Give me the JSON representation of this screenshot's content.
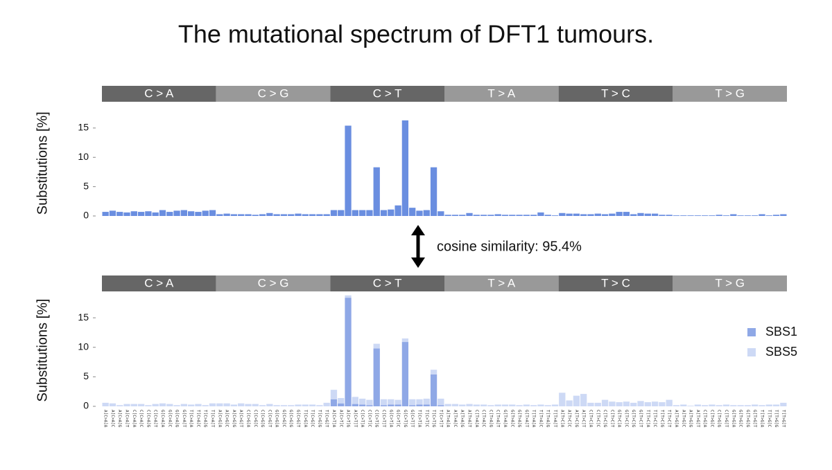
{
  "title": "The mutational spectrum of DFT1 tumours.",
  "annotation": "cosine similarity: 95.4%",
  "chart_data": [
    {
      "type": "bar",
      "ylabel": "Substitutions [%]",
      "color": "#6a8ee0",
      "groups": [
        {
          "name": "C > A",
          "color": "#666666"
        },
        {
          "name": "C > G",
          "color": "#999999"
        },
        {
          "name": "C > T",
          "color": "#666666"
        },
        {
          "name": "T > A",
          "color": "#999999"
        },
        {
          "name": "T > C",
          "color": "#666666"
        },
        {
          "name": "T > G",
          "color": "#999999"
        }
      ],
      "values": [
        0.7,
        0.9,
        0.7,
        0.6,
        0.8,
        0.7,
        0.8,
        0.6,
        1.0,
        0.7,
        0.9,
        1.0,
        0.8,
        0.7,
        0.9,
        1.0,
        0.3,
        0.4,
        0.3,
        0.3,
        0.3,
        0.2,
        0.3,
        0.5,
        0.3,
        0.3,
        0.3,
        0.4,
        0.3,
        0.3,
        0.3,
        0.3,
        1.0,
        1.0,
        15.4,
        1.0,
        1.0,
        1.0,
        8.3,
        1.0,
        1.1,
        1.8,
        16.3,
        1.4,
        0.9,
        1.0,
        8.3,
        0.8,
        0.2,
        0.2,
        0.2,
        0.5,
        0.2,
        0.2,
        0.2,
        0.3,
        0.2,
        0.2,
        0.2,
        0.2,
        0.2,
        0.6,
        0.2,
        0.1,
        0.5,
        0.4,
        0.4,
        0.3,
        0.3,
        0.4,
        0.3,
        0.4,
        0.7,
        0.7,
        0.3,
        0.5,
        0.4,
        0.4,
        0.2,
        0.2,
        0.1,
        0.1,
        0.1,
        0.1,
        0.1,
        0.1,
        0.2,
        0.1,
        0.3,
        0.1,
        0.1,
        0.1,
        0.3,
        0.1,
        0.2,
        0.3
      ],
      "ylim": [
        0,
        18
      ],
      "yticks": [
        0,
        5,
        10,
        15
      ]
    },
    {
      "type": "stacked_bar",
      "ylabel": "Substitutions [%]",
      "groups": [
        {
          "name": "C > A",
          "color": "#666666"
        },
        {
          "name": "C > G",
          "color": "#999999"
        },
        {
          "name": "C > T",
          "color": "#666666"
        },
        {
          "name": "T > A",
          "color": "#999999"
        },
        {
          "name": "T > C",
          "color": "#666666"
        },
        {
          "name": "T > G",
          "color": "#999999"
        }
      ],
      "categories": [
        "A[C>A]A",
        "A[C>A]C",
        "A[C>A]G",
        "A[C>A]T",
        "C[C>A]A",
        "C[C>A]C",
        "C[C>A]G",
        "C[C>A]T",
        "G[C>A]A",
        "G[C>A]C",
        "G[C>A]G",
        "G[C>A]T",
        "T[C>A]A",
        "T[C>A]C",
        "T[C>A]G",
        "T[C>A]T",
        "A[C>G]A",
        "A[C>G]C",
        "A[C>G]G",
        "A[C>G]T",
        "C[C>G]A",
        "C[C>G]C",
        "C[C>G]G",
        "C[C>G]T",
        "G[C>G]A",
        "G[C>G]C",
        "G[C>G]G",
        "G[C>G]T",
        "T[C>G]A",
        "T[C>G]C",
        "T[C>G]G",
        "T[C>G]T",
        "A[C>T]A",
        "A[C>T]C",
        "A[C>T]G",
        "A[C>T]T",
        "C[C>T]A",
        "C[C>T]C",
        "C[C>T]G",
        "C[C>T]T",
        "G[C>T]A",
        "G[C>T]C",
        "G[C>T]G",
        "G[C>T]T",
        "T[C>T]A",
        "T[C>T]C",
        "T[C>T]G",
        "T[C>T]T",
        "A[T>A]A",
        "A[T>A]C",
        "A[T>A]G",
        "A[T>A]T",
        "C[T>A]A",
        "C[T>A]C",
        "C[T>A]G",
        "C[T>A]T",
        "G[T>A]A",
        "G[T>A]C",
        "G[T>A]G",
        "G[T>A]T",
        "T[T>A]A",
        "T[T>A]C",
        "T[T>A]G",
        "T[T>A]T",
        "A[T>C]A",
        "A[T>C]C",
        "A[T>C]G",
        "A[T>C]T",
        "C[T>C]A",
        "C[T>C]C",
        "C[T>C]G",
        "C[T>C]T",
        "G[T>C]A",
        "G[T>C]C",
        "G[T>C]G",
        "G[T>C]T",
        "T[T>C]A",
        "T[T>C]C",
        "T[T>C]G",
        "T[T>C]T",
        "A[T>G]A",
        "A[T>G]C",
        "A[T>G]G",
        "A[T>G]T",
        "C[T>G]A",
        "C[T>G]C",
        "C[T>G]G",
        "C[T>G]T",
        "G[T>G]A",
        "G[T>G]C",
        "G[T>G]G",
        "G[T>G]T",
        "T[T>G]A",
        "T[T>G]C",
        "T[T>G]G",
        "T[T>G]T"
      ],
      "series": [
        {
          "name": "SBS1",
          "color": "#8fa8e6",
          "values": [
            0,
            0,
            0,
            0,
            0,
            0,
            0,
            0,
            0,
            0,
            0,
            0,
            0,
            0,
            0,
            0,
            0,
            0,
            0,
            0,
            0,
            0,
            0,
            0,
            0,
            0,
            0,
            0,
            0,
            0,
            0,
            0,
            1.2,
            0.5,
            18.4,
            0.4,
            0.3,
            0.2,
            9.8,
            0.2,
            0.3,
            0.3,
            10.9,
            0.2,
            0.3,
            0.3,
            5.4,
            0.2,
            0,
            0,
            0,
            0,
            0,
            0,
            0,
            0,
            0,
            0,
            0,
            0,
            0,
            0,
            0,
            0,
            0,
            0,
            0,
            0,
            0,
            0,
            0,
            0,
            0,
            0,
            0,
            0,
            0,
            0,
            0,
            0,
            0,
            0,
            0,
            0,
            0,
            0,
            0,
            0,
            0,
            0,
            0,
            0,
            0,
            0,
            0,
            0
          ]
        },
        {
          "name": "SBS5",
          "color": "#cdd9f5",
          "values": [
            0.6,
            0.5,
            0.2,
            0.4,
            0.4,
            0.4,
            0.2,
            0.4,
            0.5,
            0.4,
            0.2,
            0.4,
            0.3,
            0.4,
            0.2,
            0.5,
            0.5,
            0.5,
            0.3,
            0.5,
            0.4,
            0.4,
            0.2,
            0.4,
            0.2,
            0.2,
            0.2,
            0.3,
            0.3,
            0.3,
            0.2,
            0.6,
            1.6,
            0.9,
            0.4,
            1.2,
            1.0,
            0.9,
            0.8,
            1.0,
            0.9,
            0.8,
            0.6,
            1.0,
            0.9,
            1.0,
            0.8,
            1.1,
            0.4,
            0.4,
            0.3,
            0.4,
            0.3,
            0.3,
            0.2,
            0.3,
            0.3,
            0.3,
            0.2,
            0.3,
            0.2,
            0.3,
            0.2,
            0.3,
            2.3,
            1.0,
            1.8,
            2.1,
            0.6,
            0.6,
            1.1,
            0.8,
            0.7,
            0.8,
            0.6,
            0.9,
            0.7,
            0.8,
            0.7,
            1.1,
            0.2,
            0.3,
            0.1,
            0.3,
            0.2,
            0.3,
            0.2,
            0.3,
            0.2,
            0.2,
            0.2,
            0.3,
            0.2,
            0.3,
            0.3,
            0.6
          ]
        }
      ],
      "ylim": [
        0,
        19
      ],
      "yticks": [
        0,
        5,
        10,
        15
      ],
      "legend": "right"
    }
  ]
}
